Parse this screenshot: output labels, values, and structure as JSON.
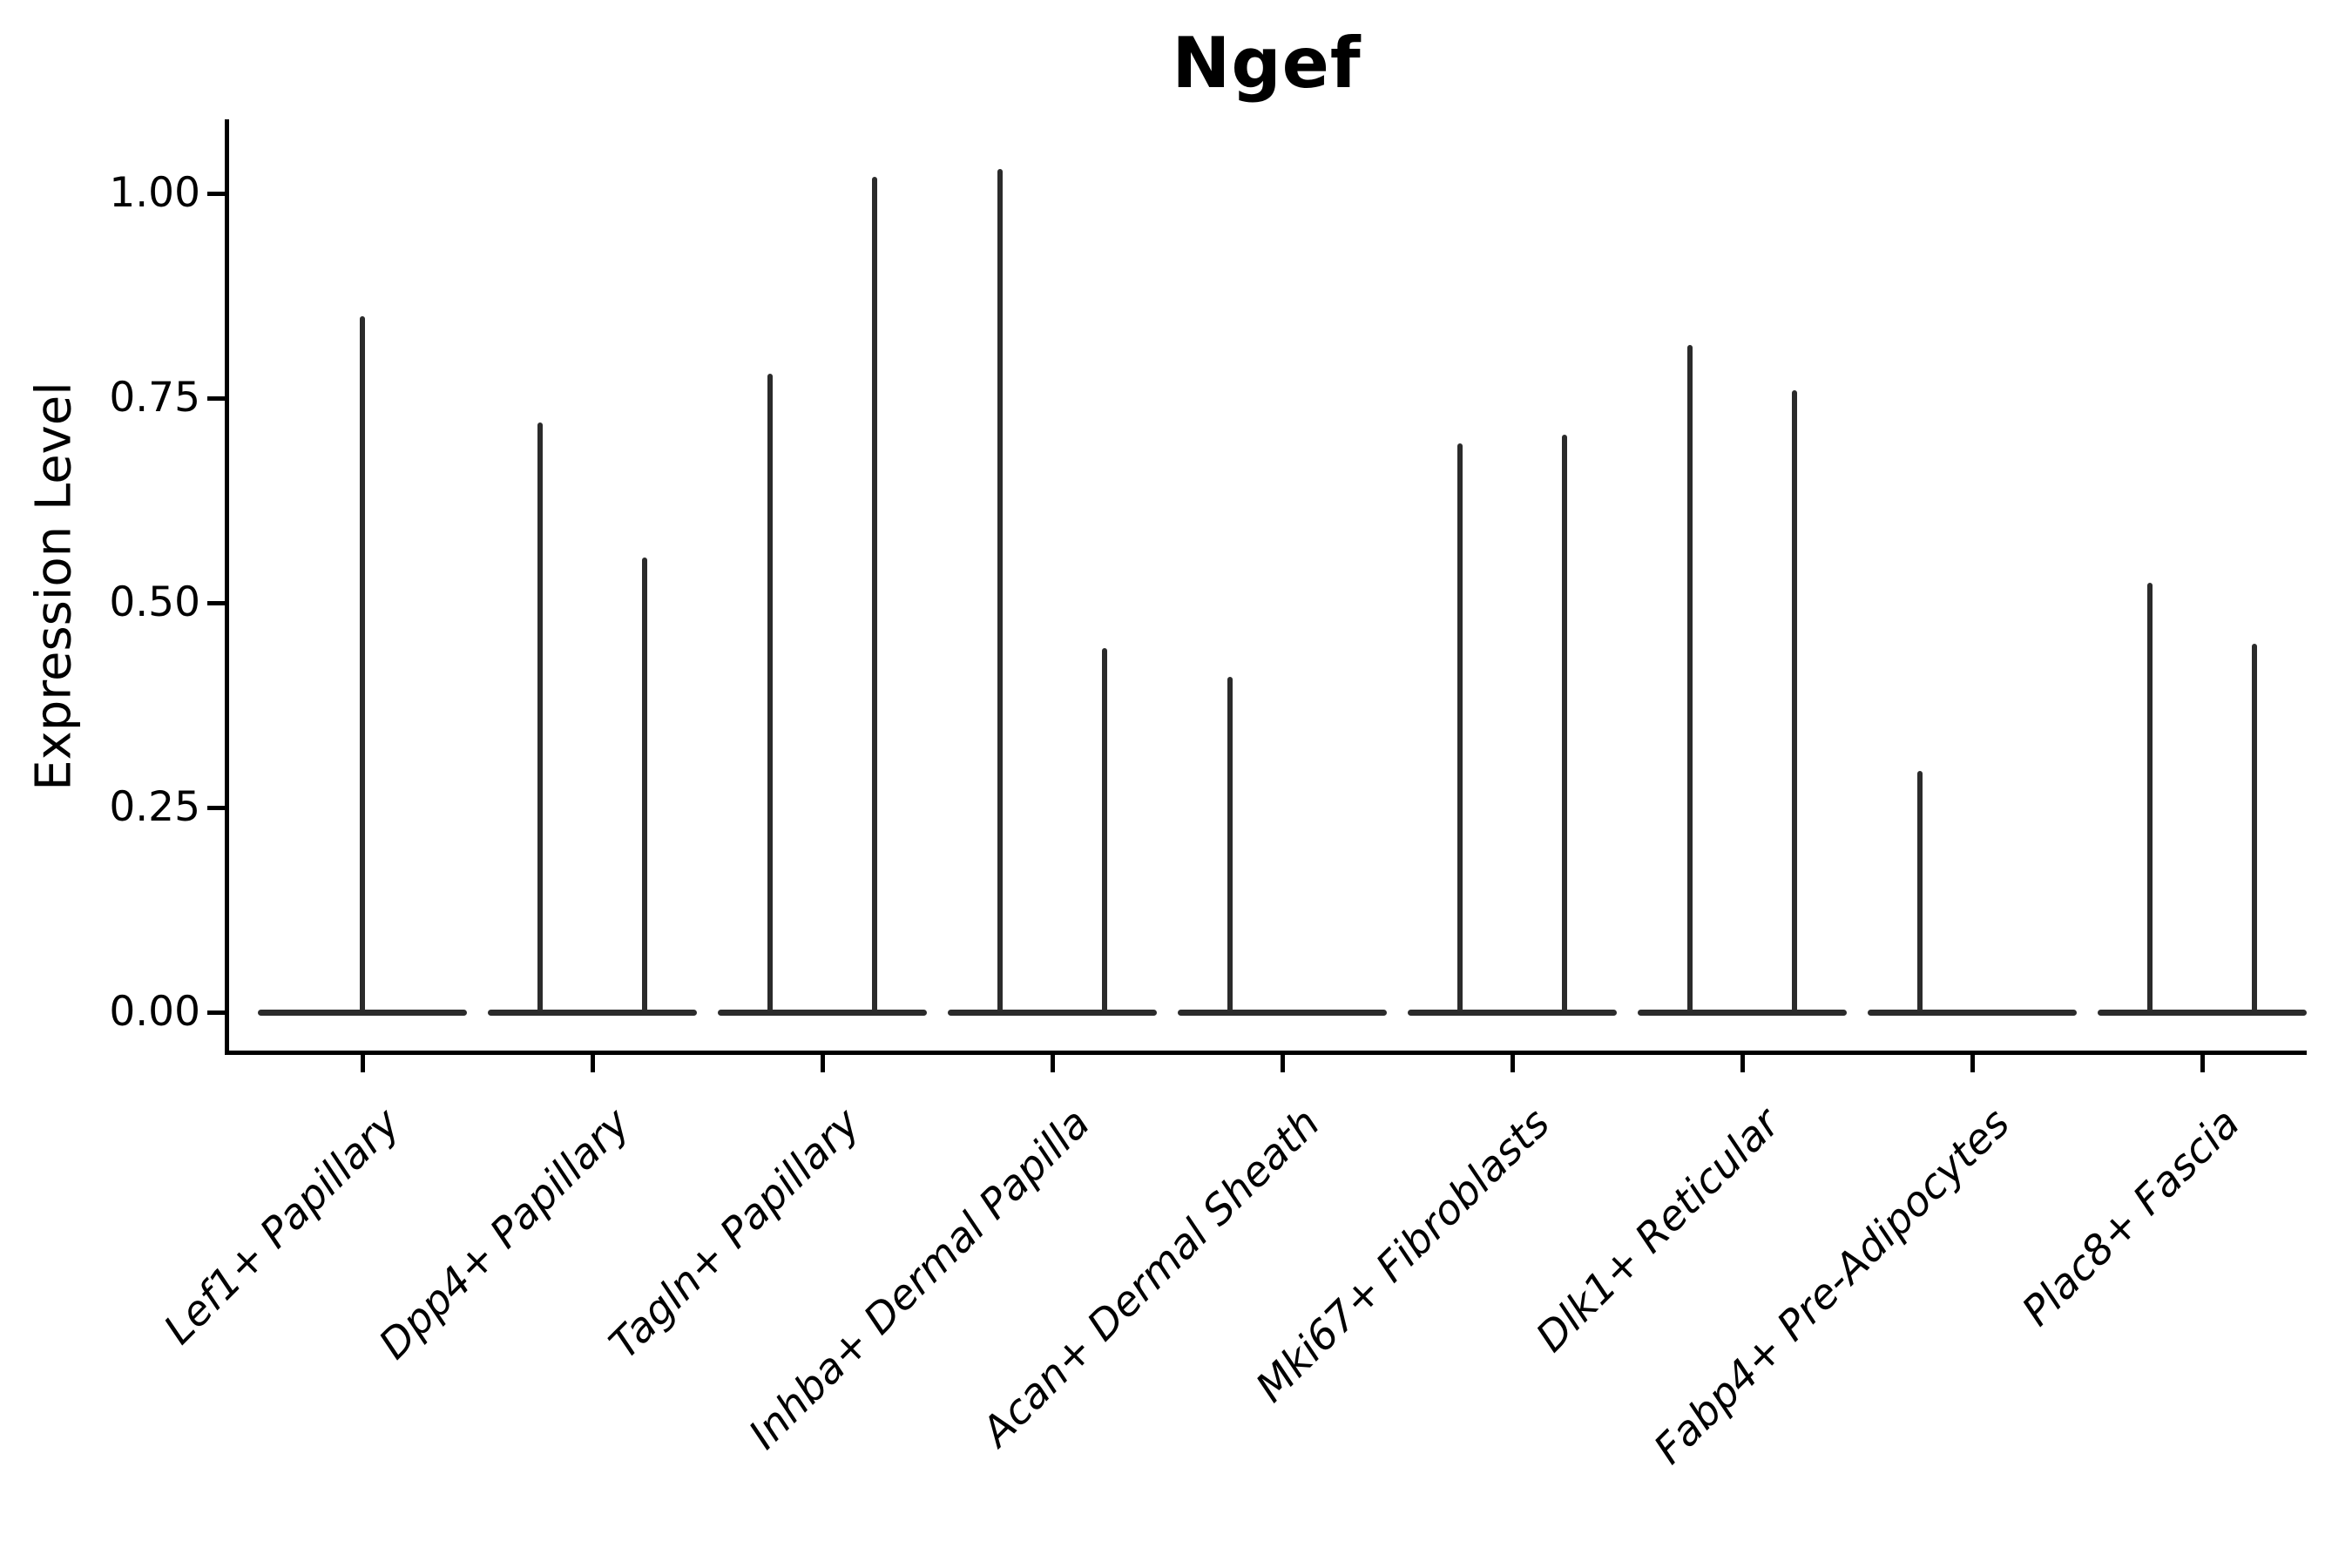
{
  "chart_data": {
    "type": "violin",
    "title": "Ngef",
    "xlabel": "",
    "ylabel": "Expression Level",
    "ylim": [
      -0.05,
      1.09
    ],
    "grid": false,
    "legend": "none",
    "yticks": [
      {
        "label": "0.00",
        "value": 0.0
      },
      {
        "label": "0.25",
        "value": 0.25
      },
      {
        "label": "0.50",
        "value": 0.5
      },
      {
        "label": "0.75",
        "value": 0.75
      },
      {
        "label": "1.00",
        "value": 1.0
      }
    ],
    "categories": [
      "Lef1+ Papillary",
      "Dpp4+ Papillary",
      "Tagln+ Papillary",
      "Inhba+ Dermal Papilla",
      "Acan+ Dermal Sheath",
      "Mki67+ Fibroblasts",
      "Dlk1+ Reticular",
      "Fabp4+ Pre-Adipocytes",
      "Plac8+ Fascia"
    ],
    "violins": [
      {
        "category": "Lef1+ Papillary",
        "base_value": 0,
        "spikes": [
          {
            "pos": "center",
            "max": 0.85
          }
        ]
      },
      {
        "category": "Dpp4+ Papillary",
        "base_value": 0,
        "spikes": [
          {
            "pos": "left",
            "max": 0.72
          },
          {
            "pos": "right",
            "max": 0.555
          }
        ]
      },
      {
        "category": "Tagln+ Papillary",
        "base_value": 0,
        "spikes": [
          {
            "pos": "left",
            "max": 0.78
          },
          {
            "pos": "right",
            "max": 1.02
          }
        ]
      },
      {
        "category": "Inhba+ Dermal Papilla",
        "base_value": 0,
        "spikes": [
          {
            "pos": "left",
            "max": 1.03
          },
          {
            "pos": "right",
            "max": 0.445
          }
        ]
      },
      {
        "category": "Acan+ Dermal Sheath",
        "base_value": 0,
        "spikes": [
          {
            "pos": "left",
            "max": 0.41
          }
        ]
      },
      {
        "category": "Mki67+ Fibroblasts",
        "base_value": 0,
        "spikes": [
          {
            "pos": "left",
            "max": 0.695
          },
          {
            "pos": "right",
            "max": 0.705
          }
        ]
      },
      {
        "category": "Dlk1+ Reticular",
        "base_value": 0,
        "spikes": [
          {
            "pos": "left",
            "max": 0.815
          },
          {
            "pos": "right",
            "max": 0.76
          }
        ]
      },
      {
        "category": "Fabp4+ Pre-Adipocytes",
        "base_value": 0,
        "spikes": [
          {
            "pos": "left",
            "max": 0.295
          }
        ]
      },
      {
        "category": "Plac8+ Fascia",
        "base_value": 0,
        "spikes": [
          {
            "pos": "left",
            "max": 0.525
          },
          {
            "pos": "right",
            "max": 0.45
          }
        ]
      }
    ],
    "colors": {
      "violin": "#2b2b2b",
      "axis": "#000000",
      "text": "#000000",
      "background": "#ffffff"
    }
  }
}
